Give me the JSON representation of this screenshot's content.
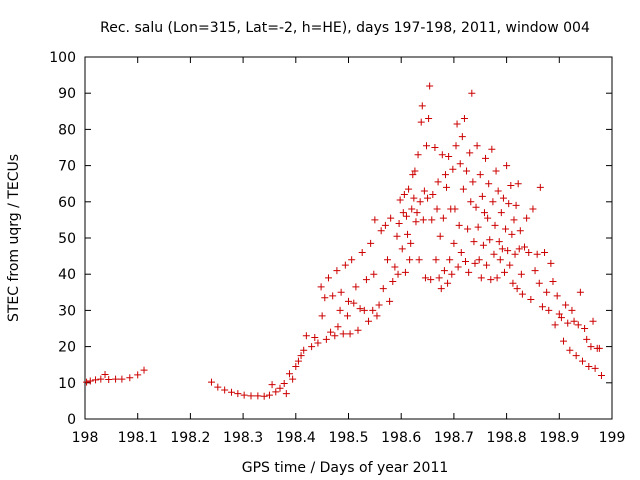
{
  "chart_data": {
    "type": "scatter",
    "title": "Rec. salu (Lon=315, Lat=-2, h=HE), days 197-198, 2011, window 004",
    "xlabel": "GPS time / Days of year 2011",
    "ylabel": "STEC from uqrg / TECUs",
    "xlim": [
      198,
      199
    ],
    "ylim": [
      0,
      100
    ],
    "xticks": [
      198,
      198.1,
      198.2,
      198.3,
      198.4,
      198.5,
      198.6,
      198.7,
      198.8,
      198.9,
      199
    ],
    "xtick_labels": [
      "198",
      "198.1",
      "198.2",
      "198.3",
      "198.4",
      "198.5",
      "198.6",
      "198.7",
      "198.8",
      "198.9",
      "199"
    ],
    "yticks": [
      0,
      10,
      20,
      30,
      40,
      50,
      60,
      70,
      80,
      90,
      100
    ],
    "ytick_labels": [
      "0",
      "10",
      "20",
      "30",
      "40",
      "50",
      "60",
      "70",
      "80",
      "90",
      "100"
    ],
    "grid": false,
    "marker": "plus",
    "color": "#cc0000",
    "points": [
      [
        198.003,
        10.2
      ],
      [
        198.01,
        10.5
      ],
      [
        198.02,
        10.8
      ],
      [
        198.03,
        11.0
      ],
      [
        198.038,
        12.3
      ],
      [
        198.045,
        10.9
      ],
      [
        198.058,
        11.0
      ],
      [
        198.07,
        11.0
      ],
      [
        198.085,
        11.4
      ],
      [
        198.1,
        12.2
      ],
      [
        198.112,
        13.5
      ],
      [
        198.24,
        10.2
      ],
      [
        198.252,
        8.8
      ],
      [
        198.265,
        8.0
      ],
      [
        198.278,
        7.4
      ],
      [
        198.29,
        7.0
      ],
      [
        198.302,
        6.6
      ],
      [
        198.315,
        6.4
      ],
      [
        198.328,
        6.4
      ],
      [
        198.34,
        6.3
      ],
      [
        198.35,
        6.6
      ],
      [
        198.355,
        9.5
      ],
      [
        198.362,
        7.5
      ],
      [
        198.37,
        8.5
      ],
      [
        198.378,
        9.8
      ],
      [
        198.382,
        7.0
      ],
      [
        198.388,
        12.5
      ],
      [
        198.394,
        11.0
      ],
      [
        198.4,
        14.5
      ],
      [
        198.405,
        16.0
      ],
      [
        198.41,
        17.5
      ],
      [
        198.415,
        19.0
      ],
      [
        198.42,
        23.0
      ],
      [
        198.43,
        20.0
      ],
      [
        198.436,
        22.5
      ],
      [
        198.442,
        21.0
      ],
      [
        198.448,
        36.5
      ],
      [
        198.45,
        28.5
      ],
      [
        198.455,
        33.5
      ],
      [
        198.458,
        22.0
      ],
      [
        198.462,
        39.0
      ],
      [
        198.466,
        24.0
      ],
      [
        198.47,
        34.0
      ],
      [
        198.474,
        23.0
      ],
      [
        198.478,
        41.0
      ],
      [
        198.48,
        25.5
      ],
      [
        198.484,
        30.0
      ],
      [
        198.486,
        35.0
      ],
      [
        198.49,
        23.5
      ],
      [
        198.494,
        42.5
      ],
      [
        198.498,
        28.5
      ],
      [
        198.5,
        32.5
      ],
      [
        198.503,
        23.5
      ],
      [
        198.506,
        44.0
      ],
      [
        198.51,
        32.0
      ],
      [
        198.514,
        36.5
      ],
      [
        198.518,
        24.5
      ],
      [
        198.522,
        30.5
      ],
      [
        198.526,
        46.0
      ],
      [
        198.53,
        30.0
      ],
      [
        198.534,
        38.5
      ],
      [
        198.538,
        27.0
      ],
      [
        198.542,
        48.5
      ],
      [
        198.546,
        30.0
      ],
      [
        198.548,
        40.0
      ],
      [
        198.55,
        55.0
      ],
      [
        198.554,
        28.5
      ],
      [
        198.558,
        31.5
      ],
      [
        198.562,
        52.0
      ],
      [
        198.566,
        36.0
      ],
      [
        198.57,
        53.5
      ],
      [
        198.574,
        44.0
      ],
      [
        198.578,
        32.5
      ],
      [
        198.58,
        55.5
      ],
      [
        198.584,
        38.0
      ],
      [
        198.588,
        42.0
      ],
      [
        198.592,
        50.5
      ],
      [
        198.594,
        40.0
      ],
      [
        198.596,
        54.0
      ],
      [
        198.598,
        60.5
      ],
      [
        198.602,
        47.0
      ],
      [
        198.604,
        57.0
      ],
      [
        198.606,
        62.0
      ],
      [
        198.608,
        40.5
      ],
      [
        198.61,
        56.0
      ],
      [
        198.612,
        51.0
      ],
      [
        198.614,
        63.5
      ],
      [
        198.616,
        44.0
      ],
      [
        198.618,
        48.5
      ],
      [
        198.62,
        58.0
      ],
      [
        198.622,
        67.5
      ],
      [
        198.624,
        61.0
      ],
      [
        198.626,
        68.5
      ],
      [
        198.628,
        54.5
      ],
      [
        198.63,
        57.0
      ],
      [
        198.632,
        73.0
      ],
      [
        198.634,
        44.0
      ],
      [
        198.636,
        60.0
      ],
      [
        198.638,
        82.0
      ],
      [
        198.64,
        86.5
      ],
      [
        198.642,
        55.0
      ],
      [
        198.644,
        63.0
      ],
      [
        198.646,
        39.0
      ],
      [
        198.648,
        75.5
      ],
      [
        198.65,
        61.0
      ],
      [
        198.652,
        83.0
      ],
      [
        198.654,
        92.0
      ],
      [
        198.656,
        38.5
      ],
      [
        198.658,
        55.0
      ],
      [
        198.66,
        62.0
      ],
      [
        198.664,
        75.0
      ],
      [
        198.666,
        44.0
      ],
      [
        198.668,
        58.0
      ],
      [
        198.67,
        65.5
      ],
      [
        198.672,
        39.0
      ],
      [
        198.674,
        50.5
      ],
      [
        198.676,
        36.0
      ],
      [
        198.678,
        73.0
      ],
      [
        198.68,
        55.5
      ],
      [
        198.682,
        41.0
      ],
      [
        198.684,
        67.5
      ],
      [
        198.686,
        64.0
      ],
      [
        198.688,
        37.5
      ],
      [
        198.69,
        72.5
      ],
      [
        198.692,
        44.0
      ],
      [
        198.694,
        58.0
      ],
      [
        198.696,
        40.0
      ],
      [
        198.698,
        69.0
      ],
      [
        198.7,
        48.5
      ],
      [
        198.702,
        58.0
      ],
      [
        198.704,
        75.5
      ],
      [
        198.706,
        81.5
      ],
      [
        198.708,
        42.0
      ],
      [
        198.71,
        53.5
      ],
      [
        198.712,
        70.5
      ],
      [
        198.714,
        46.0
      ],
      [
        198.716,
        78.0
      ],
      [
        198.718,
        63.5
      ],
      [
        198.72,
        83.0
      ],
      [
        198.722,
        43.5
      ],
      [
        198.724,
        68.5
      ],
      [
        198.726,
        52.5
      ],
      [
        198.728,
        40.5
      ],
      [
        198.73,
        73.5
      ],
      [
        198.732,
        60.0
      ],
      [
        198.734,
        90.0
      ],
      [
        198.736,
        65.5
      ],
      [
        198.738,
        49.0
      ],
      [
        198.74,
        43.0
      ],
      [
        198.742,
        58.5
      ],
      [
        198.744,
        75.5
      ],
      [
        198.746,
        53.0
      ],
      [
        198.748,
        44.0
      ],
      [
        198.75,
        67.5
      ],
      [
        198.752,
        39.0
      ],
      [
        198.754,
        61.5
      ],
      [
        198.756,
        48.0
      ],
      [
        198.758,
        57.0
      ],
      [
        198.76,
        72.0
      ],
      [
        198.762,
        42.5
      ],
      [
        198.764,
        55.5
      ],
      [
        198.766,
        65.0
      ],
      [
        198.768,
        49.5
      ],
      [
        198.77,
        38.5
      ],
      [
        198.772,
        74.5
      ],
      [
        198.774,
        60.0
      ],
      [
        198.776,
        45.5
      ],
      [
        198.778,
        53.5
      ],
      [
        198.78,
        68.5
      ],
      [
        198.782,
        39.0
      ],
      [
        198.784,
        63.0
      ],
      [
        198.786,
        49.0
      ],
      [
        198.788,
        44.0
      ],
      [
        198.79,
        57.0
      ],
      [
        198.792,
        47.0
      ],
      [
        198.794,
        61.0
      ],
      [
        198.796,
        40.5
      ],
      [
        198.798,
        52.5
      ],
      [
        198.8,
        70.0
      ],
      [
        198.802,
        46.5
      ],
      [
        198.804,
        59.5
      ],
      [
        198.806,
        42.5
      ],
      [
        198.808,
        64.5
      ],
      [
        198.81,
        51.0
      ],
      [
        198.812,
        37.5
      ],
      [
        198.814,
        55.0
      ],
      [
        198.816,
        45.5
      ],
      [
        198.818,
        59.0
      ],
      [
        198.82,
        36.0
      ],
      [
        198.822,
        65.0
      ],
      [
        198.824,
        47.0
      ],
      [
        198.826,
        52.0
      ],
      [
        198.828,
        40.0
      ],
      [
        198.83,
        34.5
      ],
      [
        198.834,
        47.5
      ],
      [
        198.838,
        55.5
      ],
      [
        198.842,
        46.0
      ],
      [
        198.846,
        33.0
      ],
      [
        198.85,
        58.0
      ],
      [
        198.854,
        41.0
      ],
      [
        198.858,
        45.5
      ],
      [
        198.862,
        37.5
      ],
      [
        198.864,
        64.0
      ],
      [
        198.868,
        31.0
      ],
      [
        198.872,
        46.0
      ],
      [
        198.876,
        35.0
      ],
      [
        198.88,
        30.0
      ],
      [
        198.884,
        43.0
      ],
      [
        198.888,
        38.0
      ],
      [
        198.892,
        26.0
      ],
      [
        198.896,
        34.0
      ],
      [
        198.9,
        29.0
      ],
      [
        198.904,
        28.0
      ],
      [
        198.908,
        21.5
      ],
      [
        198.912,
        31.5
      ],
      [
        198.916,
        26.5
      ],
      [
        198.92,
        19.0
      ],
      [
        198.924,
        30.0
      ],
      [
        198.928,
        27.0
      ],
      [
        198.932,
        17.5
      ],
      [
        198.936,
        26.0
      ],
      [
        198.94,
        35.0
      ],
      [
        198.944,
        16.0
      ],
      [
        198.948,
        25.0
      ],
      [
        198.952,
        22.0
      ],
      [
        198.956,
        14.5
      ],
      [
        198.96,
        20.0
      ],
      [
        198.964,
        27.0
      ],
      [
        198.968,
        14.0
      ],
      [
        198.972,
        19.5
      ],
      [
        198.976,
        19.5
      ],
      [
        198.98,
        12.0
      ]
    ]
  }
}
